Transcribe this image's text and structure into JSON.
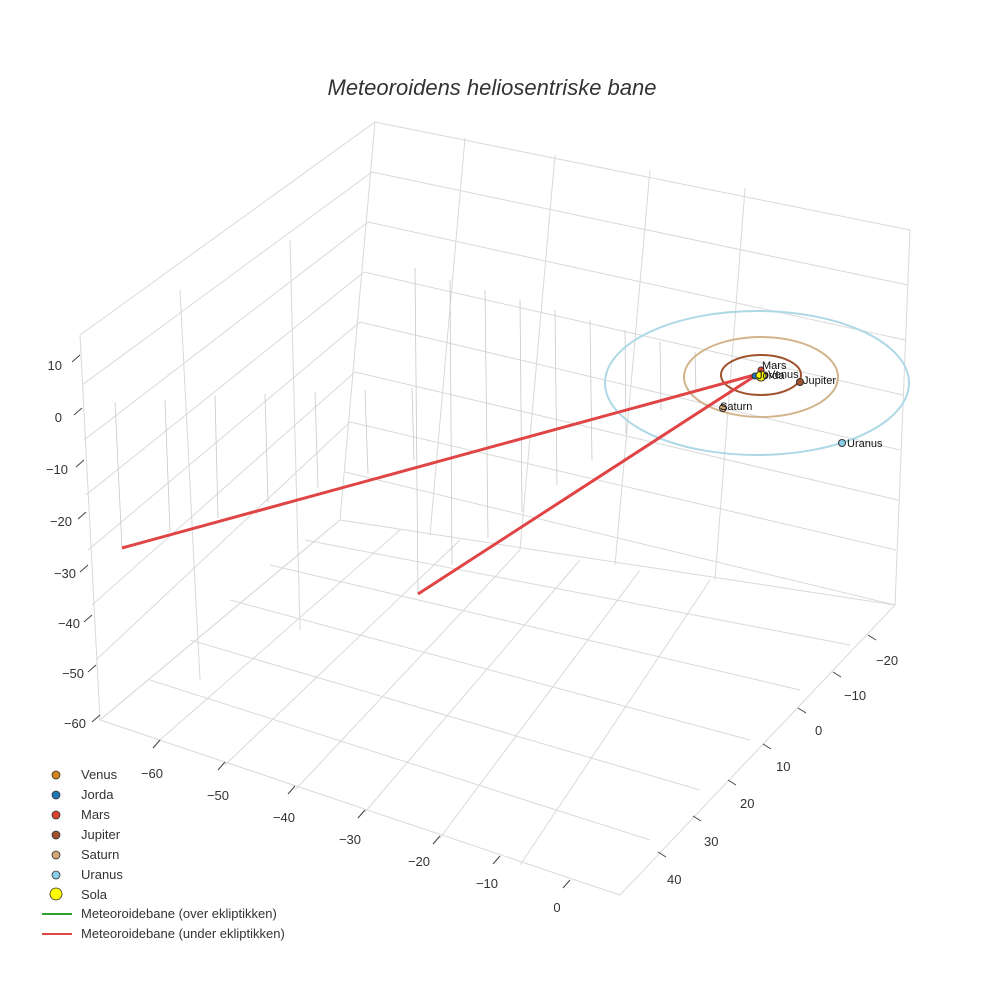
{
  "chart_data": {
    "type": "scatter3d",
    "title": "Meteoroidens heliosentriske bane",
    "axes": {
      "x": {
        "ticks": [
          -60,
          -50,
          -40,
          -30,
          -20,
          -10,
          0
        ]
      },
      "y": {
        "ticks": [
          -20,
          -10,
          0,
          10,
          20,
          30,
          40
        ]
      },
      "z": {
        "ticks": [
          10,
          0,
          -10,
          -20,
          -30,
          -40,
          -50,
          -60
        ]
      }
    },
    "grid": true,
    "legend_position": "bottom-left",
    "planets": [
      {
        "name": "Venus",
        "label": "Venus",
        "color": "#d4841f"
      },
      {
        "name": "Jorda",
        "label": "Jorda",
        "color": "#1f77b4"
      },
      {
        "name": "Mars",
        "label": "Mars",
        "color": "#d5442b"
      },
      {
        "name": "Jupiter",
        "label": "Jupiter",
        "color": "#a0522d"
      },
      {
        "name": "Saturn",
        "label": "Saturn",
        "color": "#d2a679"
      },
      {
        "name": "Uranus",
        "label": "Uranus",
        "color": "#87ceeb"
      }
    ],
    "sun": {
      "name": "Sola",
      "color": "#ffff00"
    },
    "series": [
      {
        "name": "Meteoroidebane (over ekliptikken)",
        "color": "#2ca02c"
      },
      {
        "name": "Meteoroidebane (under ekliptikken)",
        "color": "#e04444"
      }
    ]
  }
}
